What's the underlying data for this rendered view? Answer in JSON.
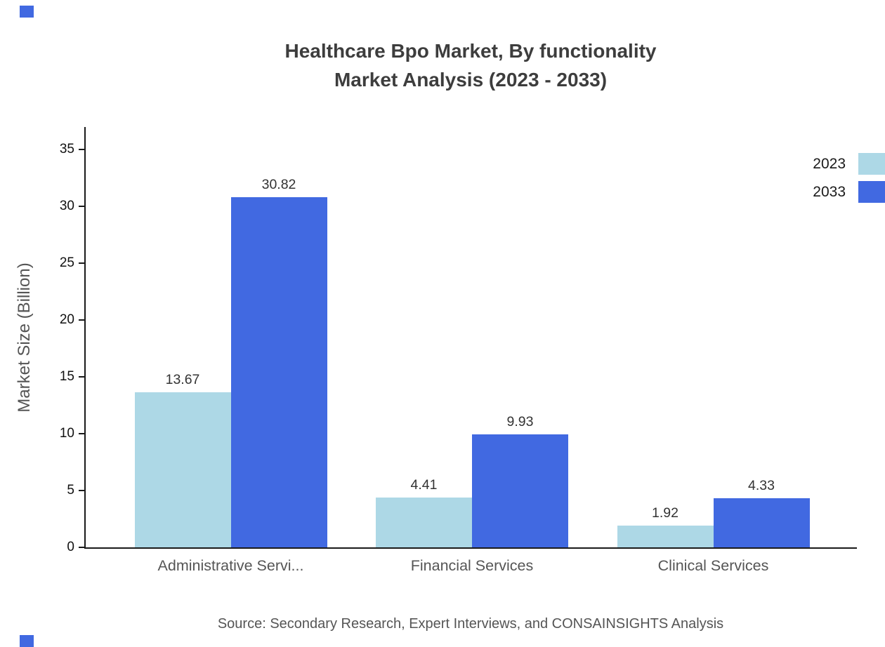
{
  "title": {
    "line1": "Healthcare Bpo Market, By functionality",
    "line2": "Market Analysis (2023 - 2033)"
  },
  "source": "Source: Secondary Research, Expert Interviews, and CONSAINSIGHTS Analysis",
  "colors": {
    "series_2023": "#add8e6",
    "series_2033": "#4169e1",
    "axis": "#1a1a1a",
    "watermark": "#4169e1"
  },
  "legend": {
    "items": [
      {
        "label": "2023",
        "color": "#add8e6"
      },
      {
        "label": "2033",
        "color": "#4169e1"
      }
    ]
  },
  "chart_data": {
    "type": "bar",
    "title": "Healthcare Bpo Market, By functionality Market Analysis (2023 - 2033)",
    "categories": [
      "Administrative Servi...",
      "Financial Services",
      "Clinical Services"
    ],
    "series": [
      {
        "name": "2023",
        "color": "#add8e6",
        "values": [
          13.67,
          4.41,
          1.92
        ]
      },
      {
        "name": "2033",
        "color": "#4169e1",
        "values": [
          30.82,
          9.93,
          4.33
        ]
      }
    ],
    "xlabel": "",
    "ylabel": "Market Size (Billion)",
    "ylim": [
      0,
      37
    ],
    "yticks": [
      0,
      5,
      10,
      15,
      20,
      25,
      30,
      35
    ],
    "grid": false,
    "legend_position": "top-right"
  }
}
